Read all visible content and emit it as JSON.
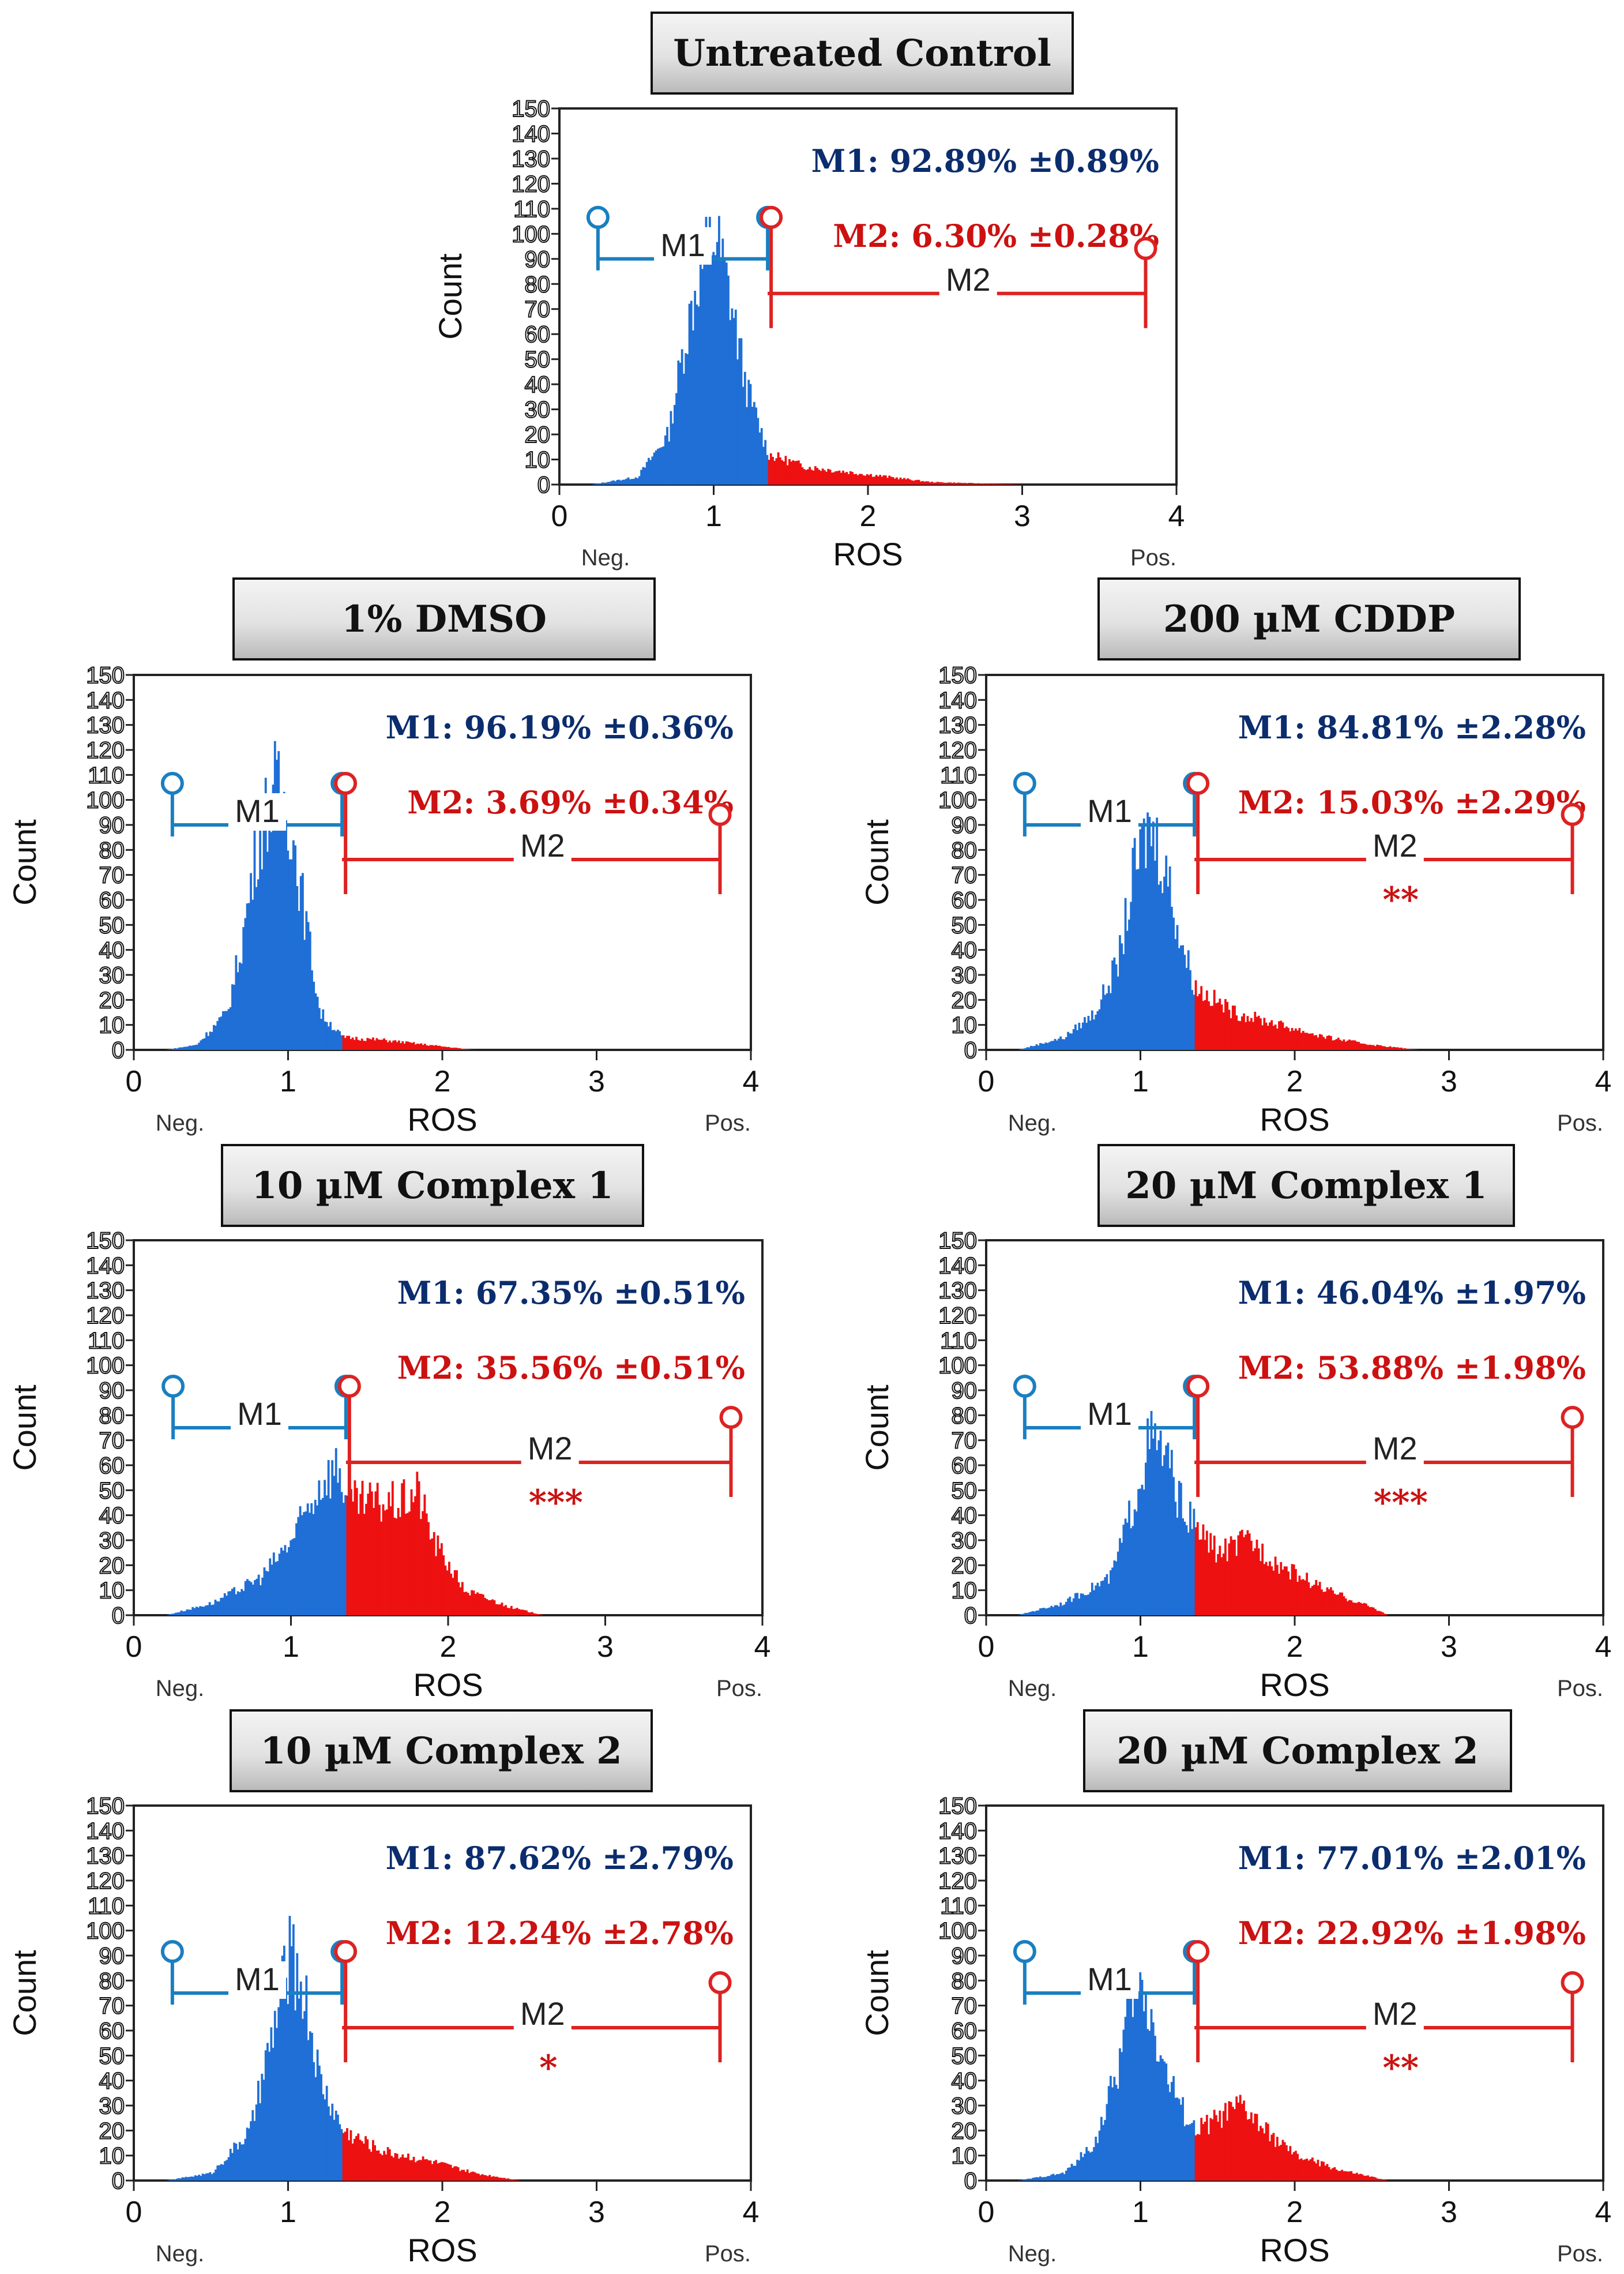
{
  "colors": {
    "m1": "#0b2d6e",
    "m2": "#cc1111",
    "blue_fill": "#1f6fd6",
    "red_fill": "#ee1111",
    "gate_blue": "#1a7fc0",
    "gate_red": "#dd2222"
  },
  "chart_data": [
    {
      "type": "histogram",
      "title": "Untreated Control",
      "xlabel": "ROS",
      "ylabel": "Count",
      "xlim": [
        0,
        4
      ],
      "ylim": [
        0,
        150
      ],
      "xticks": [
        "0",
        "1",
        "2",
        "3",
        "4"
      ],
      "yticks": [
        "0",
        "10",
        "20",
        "30",
        "40",
        "50",
        "60",
        "70",
        "80",
        "90",
        "100",
        "110",
        "120",
        "130",
        "140",
        "150"
      ],
      "x_left_label": "Neg.",
      "x_right_label": "Pos.",
      "m1_stat": "M1: 92.89% ±0.89%",
      "m2_stat": "M2: 6.30% ±0.28%",
      "m1_label": "M1",
      "m2_label": "M2",
      "significance": "",
      "gate_m1": [
        0.25,
        1.35
      ],
      "gate_m2": [
        1.35,
        3.8
      ],
      "gate_y": 90,
      "histogram": {
        "x": [
          0.2,
          0.5,
          0.7,
          0.8,
          0.9,
          1.0,
          1.1,
          1.2,
          1.35,
          1.6,
          2.0,
          2.4,
          3.0
        ],
        "y": [
          0,
          3,
          20,
          55,
          85,
          100,
          75,
          40,
          12,
          7,
          4,
          1,
          0
        ]
      }
    },
    {
      "type": "histogram",
      "title": "1% DMSO",
      "xlabel": "ROS",
      "ylabel": "Count",
      "xlim": [
        0,
        4
      ],
      "ylim": [
        0,
        150
      ],
      "xticks": [
        "0",
        "1",
        "2",
        "3",
        "4"
      ],
      "yticks": [
        "0",
        "10",
        "20",
        "30",
        "40",
        "50",
        "60",
        "70",
        "80",
        "90",
        "100",
        "110",
        "120",
        "130",
        "140",
        "150"
      ],
      "x_left_label": "Neg.",
      "x_right_label": "Pos.",
      "m1_stat": "M1: 96.19% ±0.36%",
      "m2_stat": "M2: 3.69% ±0.34%",
      "m1_label": "M1",
      "m2_label": "M2",
      "significance": "",
      "gate_m1": [
        0.25,
        1.35
      ],
      "gate_m2": [
        1.35,
        3.8
      ],
      "gate_y": 90,
      "histogram": {
        "x": [
          0.2,
          0.4,
          0.6,
          0.7,
          0.8,
          0.9,
          1.0,
          1.1,
          1.2,
          1.35,
          1.6,
          1.9,
          2.2
        ],
        "y": [
          0,
          2,
          15,
          45,
          85,
          105,
          95,
          55,
          15,
          5,
          4,
          2,
          0
        ]
      }
    },
    {
      "type": "histogram",
      "title": "200 µM CDDP",
      "xlabel": "ROS",
      "ylabel": "Count",
      "xlim": [
        0,
        4
      ],
      "ylim": [
        0,
        150
      ],
      "xticks": [
        "0",
        "1",
        "2",
        "3",
        "4"
      ],
      "yticks": [
        "0",
        "10",
        "20",
        "30",
        "40",
        "50",
        "60",
        "70",
        "80",
        "90",
        "100",
        "110",
        "120",
        "130",
        "140",
        "150"
      ],
      "x_left_label": "Neg.",
      "x_right_label": "Pos.",
      "m1_stat": "M1: 84.81% ±2.28%",
      "m2_stat": "M2: 15.03% ±2.29%",
      "m1_label": "M1",
      "m2_label": "M2",
      "significance": "**",
      "gate_m1": [
        0.25,
        1.35
      ],
      "gate_m2": [
        1.35,
        3.8
      ],
      "gate_y": 90,
      "histogram": {
        "x": [
          0.2,
          0.5,
          0.7,
          0.85,
          0.95,
          1.05,
          1.15,
          1.25,
          1.35,
          1.6,
          1.9,
          2.2,
          2.5,
          2.8
        ],
        "y": [
          0,
          5,
          15,
          35,
          70,
          90,
          75,
          45,
          25,
          15,
          10,
          5,
          2,
          0
        ]
      }
    },
    {
      "type": "histogram",
      "title": "10 µM Complex 1",
      "xlabel": "ROS",
      "ylabel": "Count",
      "xlim": [
        0,
        4
      ],
      "ylim": [
        0,
        150
      ],
      "xticks": [
        "0",
        "1",
        "2",
        "3",
        "4"
      ],
      "yticks": [
        "0",
        "10",
        "20",
        "30",
        "40",
        "50",
        "60",
        "70",
        "80",
        "90",
        "100",
        "110",
        "120",
        "130",
        "140",
        "150"
      ],
      "x_left_label": "Neg.",
      "x_right_label": "Pos.",
      "m1_stat": "M1: 67.35% ±0.51%",
      "m2_stat": "M2: 35.56% ±0.51%",
      "m1_label": "M1",
      "m2_label": "M2",
      "significance": "***",
      "gate_m1": [
        0.25,
        1.35
      ],
      "gate_m2": [
        1.35,
        3.8
      ],
      "gate_y": 75,
      "histogram": {
        "x": [
          0.2,
          0.5,
          0.8,
          1.0,
          1.2,
          1.3,
          1.35,
          1.5,
          1.7,
          1.8,
          1.9,
          2.1,
          2.4,
          2.6
        ],
        "y": [
          0,
          5,
          15,
          30,
          55,
          60,
          45,
          45,
          45,
          50,
          30,
          10,
          3,
          0
        ]
      }
    },
    {
      "type": "histogram",
      "title": "20 µM Complex 1",
      "xlabel": "ROS",
      "ylabel": "Count",
      "xlim": [
        0,
        4
      ],
      "ylim": [
        0,
        150
      ],
      "xticks": [
        "0",
        "1",
        "2",
        "3",
        "4"
      ],
      "yticks": [
        "0",
        "10",
        "20",
        "30",
        "40",
        "50",
        "60",
        "70",
        "80",
        "90",
        "100",
        "110",
        "120",
        "130",
        "140",
        "150"
      ],
      "x_left_label": "Neg.",
      "x_right_label": "Pos.",
      "m1_stat": "M1: 46.04% ±1.97%",
      "m2_stat": "M2: 53.88% ±1.98%",
      "m1_label": "M1",
      "m2_label": "M2",
      "significance": "***",
      "gate_m1": [
        0.25,
        1.35
      ],
      "gate_m2": [
        1.35,
        3.8
      ],
      "gate_y": 75,
      "histogram": {
        "x": [
          0.2,
          0.5,
          0.8,
          0.95,
          1.05,
          1.15,
          1.25,
          1.35,
          1.5,
          1.7,
          1.9,
          2.2,
          2.5,
          2.6
        ],
        "y": [
          0,
          5,
          15,
          45,
          70,
          65,
          45,
          35,
          25,
          30,
          20,
          10,
          3,
          0
        ]
      }
    },
    {
      "type": "histogram",
      "title": "10 µM Complex 2",
      "xlabel": "ROS",
      "ylabel": "Count",
      "xlim": [
        0,
        4
      ],
      "ylim": [
        0,
        150
      ],
      "xticks": [
        "0",
        "1",
        "2",
        "3",
        "4"
      ],
      "yticks": [
        "0",
        "10",
        "20",
        "30",
        "40",
        "50",
        "60",
        "70",
        "80",
        "90",
        "100",
        "110",
        "120",
        "130",
        "140",
        "150"
      ],
      "x_left_label": "Neg.",
      "x_right_label": "Pos.",
      "m1_stat": "M1: 87.62% ±2.79%",
      "m2_stat": "M2: 12.24% ±2.78%",
      "m1_label": "M1",
      "m2_label": "M2",
      "significance": "*",
      "gate_m1": [
        0.25,
        1.35
      ],
      "gate_m2": [
        1.35,
        3.8
      ],
      "gate_y": 75,
      "histogram": {
        "x": [
          0.2,
          0.5,
          0.75,
          0.9,
          1.0,
          1.1,
          1.2,
          1.35,
          1.6,
          1.9,
          2.2,
          2.5
        ],
        "y": [
          0,
          3,
          20,
          60,
          90,
          75,
          40,
          20,
          12,
          8,
          3,
          0
        ]
      }
    },
    {
      "type": "histogram",
      "title": "20 µM Complex 2",
      "xlabel": "ROS",
      "ylabel": "Count",
      "xlim": [
        0,
        4
      ],
      "ylim": [
        0,
        150
      ],
      "xticks": [
        "0",
        "1",
        "2",
        "3",
        "4"
      ],
      "yticks": [
        "0",
        "10",
        "20",
        "30",
        "40",
        "50",
        "60",
        "70",
        "80",
        "90",
        "100",
        "110",
        "120",
        "130",
        "140",
        "150"
      ],
      "x_left_label": "Neg.",
      "x_right_label": "Pos.",
      "m1_stat": "M1: 77.01% ±2.01%",
      "m2_stat": "M2: 22.92% ±1.98%",
      "m1_label": "M1",
      "m2_label": "M2",
      "significance": "**",
      "gate_m1": [
        0.25,
        1.35
      ],
      "gate_m2": [
        1.35,
        3.8
      ],
      "gate_y": 75,
      "histogram": {
        "x": [
          0.2,
          0.5,
          0.7,
          0.85,
          0.95,
          1.05,
          1.15,
          1.25,
          1.35,
          1.5,
          1.65,
          1.8,
          2.0,
          2.3,
          2.6
        ],
        "y": [
          0,
          3,
          15,
          45,
          80,
          70,
          45,
          30,
          20,
          25,
          30,
          20,
          10,
          4,
          0
        ]
      }
    }
  ]
}
